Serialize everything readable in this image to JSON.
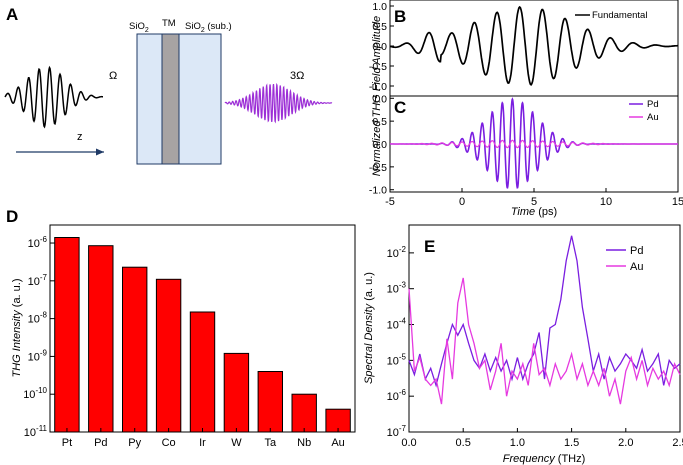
{
  "panels": {
    "A": "A",
    "B": "B",
    "C": "C",
    "D": "D",
    "E": "E"
  },
  "panel_a": {
    "label_omega": "Ω",
    "label_3omega": "3Ω",
    "label_z": "z",
    "layers": [
      {
        "name": "SiO2",
        "text": "SiO",
        "sub": "2",
        "color": "#dce8f7"
      },
      {
        "name": "TM",
        "text": "TM",
        "sub": "",
        "color": "#a7a3a3"
      },
      {
        "name": "SiO2 (sub.)",
        "text": "SiO",
        "sub": "2",
        "suffix": " (sub.)",
        "color": "#dce8f7"
      }
    ],
    "colors": {
      "fundamental": "#000000",
      "third_harmonic": "#9c2fd6",
      "arrow": "#1f3a66"
    }
  },
  "chart_data": [
    {
      "id": "B",
      "type": "line",
      "ylabel": "Normalized THG Field Amplitude",
      "xlim": [
        -5,
        15
      ],
      "ylim": [
        -1.25,
        1.15
      ],
      "yticks": [
        "1.0",
        "0.5",
        "0.0",
        "-0.5",
        "-1.0"
      ],
      "xticks": [],
      "series": [
        {
          "name": "Fundamental",
          "color": "#000000",
          "x": [
            -5,
            -3.5,
            -2,
            -1,
            -0.25,
            0.5,
            1.25,
            2,
            2.75,
            3.5,
            4.25,
            5,
            5.75,
            6.5,
            7.25,
            8,
            8.75,
            9.5,
            10.25,
            11,
            11.75,
            12.5,
            13.25,
            14,
            14.75,
            15
          ],
          "values": [
            0,
            -0.05,
            -0.15,
            0.3,
            -0.55,
            0.45,
            -0.7,
            0.8,
            -0.85,
            0.95,
            -0.95,
            0.95,
            -0.95,
            0.8,
            -0.8,
            0.65,
            -0.65,
            0.55,
            -0.5,
            0.4,
            -0.4,
            0.3,
            -0.3,
            0.3,
            -0.15,
            0.05
          ]
        }
      ],
      "legend": "top-right"
    },
    {
      "id": "C",
      "type": "line",
      "ylim": [
        -1.05,
        1.05
      ],
      "yticks": [
        "1.0",
        "0.5",
        "0.0",
        "-0.5",
        "-1.0"
      ],
      "xlim": [
        -5,
        15
      ],
      "xticks": [
        "-5",
        "0",
        "5",
        "10",
        "15"
      ],
      "xlabel": "Time",
      "xunit": " (ps)",
      "series": [
        {
          "name": "Pd",
          "color": "#7a1ee0",
          "envelope_peak": 0.98,
          "envelope_center": 3.5,
          "envelope_sigma": 2.4,
          "period": 0.7
        },
        {
          "name": "Au",
          "color": "#e63ae0",
          "envelope_peak": 0.08,
          "envelope_center": 3.5,
          "envelope_sigma": 4.5,
          "period": 0.7
        }
      ],
      "legend": "top-right"
    },
    {
      "id": "D",
      "type": "bar",
      "ylabel_italic": "THG Intensity",
      "ylabel_unit": " (a. u.)",
      "yscale": "log",
      "ylim": [
        1e-11,
        3e-06
      ],
      "yticks": [
        {
          "base": "10",
          "exp": "-6"
        },
        {
          "base": "10",
          "exp": "-7"
        },
        {
          "base": "10",
          "exp": "-8"
        },
        {
          "base": "10",
          "exp": "-9"
        },
        {
          "base": "10",
          "exp": "-10"
        },
        {
          "base": "10",
          "exp": "-11"
        }
      ],
      "categories": [
        "Pt",
        "Pd",
        "Py",
        "Co",
        "Ir",
        "W",
        "Ta",
        "Nb",
        "Au"
      ],
      "values": [
        1.4e-06,
        8.5e-07,
        2.3e-07,
        1.1e-07,
        1.5e-08,
        1.2e-09,
        4e-10,
        1e-10,
        4e-11
      ],
      "color": "#ff0000"
    },
    {
      "id": "E",
      "type": "line",
      "ylabel_italic": "Spectral Density",
      "ylabel_unit": " (a. u.)",
      "xlabel": "Frequency",
      "xunit": " (THz)",
      "yscale": "log",
      "xlim": [
        0,
        2.5
      ],
      "ylim": [
        1e-07,
        0.06
      ],
      "xticks": [
        "0.0",
        "0.5",
        "1.0",
        "1.5",
        "2.0",
        "2.5"
      ],
      "yticks": [
        {
          "base": "10",
          "exp": "-2"
        },
        {
          "base": "10",
          "exp": "-3"
        },
        {
          "base": "10",
          "exp": "-4"
        },
        {
          "base": "10",
          "exp": "-5"
        },
        {
          "base": "10",
          "exp": "-6"
        },
        {
          "base": "10",
          "exp": "-7"
        }
      ],
      "series": [
        {
          "name": "Pd",
          "color": "#7a1ee0",
          "x": [
            0,
            0.05,
            0.1,
            0.15,
            0.2,
            0.25,
            0.3,
            0.35,
            0.4,
            0.45,
            0.5,
            0.55,
            0.6,
            0.65,
            0.7,
            0.75,
            0.8,
            0.85,
            0.9,
            0.95,
            1.0,
            1.05,
            1.1,
            1.15,
            1.2,
            1.25,
            1.3,
            1.35,
            1.4,
            1.45,
            1.5,
            1.55,
            1.6,
            1.65,
            1.7,
            1.75,
            1.8,
            1.85,
            1.9,
            1.95,
            2.0,
            2.05,
            2.1,
            2.15,
            2.2,
            2.25,
            2.3,
            2.35,
            2.4,
            2.45,
            2.5
          ],
          "values": [
            1e-05,
            4e-06,
            1.5e-05,
            3e-06,
            6e-06,
            2e-06,
            8e-06,
            3e-05,
            0.0001,
            5e-05,
            0.0001,
            3e-05,
            1e-05,
            6e-06,
            1.5e-05,
            5e-06,
            1.2e-05,
            5e-06,
            1e-05,
            3e-06,
            1.2e-05,
            3e-06,
            8e-06,
            1.5e-05,
            6e-05,
            3e-06,
            8e-05,
            0.0001,
            0.0005,
            0.006,
            0.03,
            0.006,
            0.0003,
            4e-05,
            5e-06,
            1.5e-05,
            3e-06,
            1.2e-05,
            5e-06,
            8e-06,
            1.5e-05,
            1e-05,
            6e-06,
            2e-05,
            5e-06,
            8e-06,
            1.5e-05,
            2e-06,
            1e-05,
            6e-06,
            8e-06
          ]
        },
        {
          "name": "Au",
          "color": "#e63ae0",
          "x": [
            0,
            0.05,
            0.1,
            0.15,
            0.2,
            0.25,
            0.3,
            0.35,
            0.4,
            0.45,
            0.5,
            0.55,
            0.6,
            0.65,
            0.7,
            0.75,
            0.8,
            0.85,
            0.9,
            0.95,
            1.0,
            1.05,
            1.1,
            1.15,
            1.2,
            1.25,
            1.3,
            1.35,
            1.4,
            1.45,
            1.5,
            1.55,
            1.6,
            1.65,
            1.7,
            1.75,
            1.8,
            1.85,
            1.9,
            1.95,
            2.0,
            2.05,
            2.1,
            2.15,
            2.2,
            2.25,
            2.3,
            2.35,
            2.4,
            2.45,
            2.5
          ],
          "values": [
            0.001,
            5e-06,
            1.2e-05,
            3e-06,
            2e-06,
            3e-06,
            6e-07,
            4e-05,
            3e-06,
            0.0004,
            0.002,
            0.0001,
            3e-05,
            6e-06,
            1e-05,
            1.5e-06,
            5e-06,
            3e-05,
            1e-06,
            5e-06,
            3e-06,
            8e-06,
            2e-06,
            3e-05,
            4e-06,
            6e-06,
            2e-06,
            8e-06,
            3e-06,
            5e-06,
            1.5e-05,
            3e-06,
            8e-06,
            2e-06,
            5e-06,
            2e-06,
            6e-06,
            1e-06,
            3e-06,
            6e-07,
            5e-06,
            1.2e-05,
            3e-06,
            1e-05,
            2e-06,
            6e-06,
            3e-06,
            5e-06,
            2e-06,
            8e-06,
            4e-06
          ]
        }
      ],
      "legend": "top-right"
    }
  ]
}
